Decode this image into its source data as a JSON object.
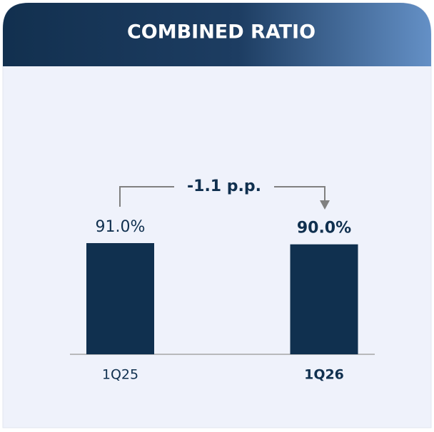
{
  "chart_data": {
    "type": "bar",
    "title": "COMBINED RATIO",
    "categories": [
      "1Q25",
      "1Q26"
    ],
    "values": [
      91.0,
      90.0
    ],
    "value_labels": [
      "91.0%",
      "90.0%"
    ],
    "color": "#10304f",
    "annotation": "-1.1 p.p."
  }
}
